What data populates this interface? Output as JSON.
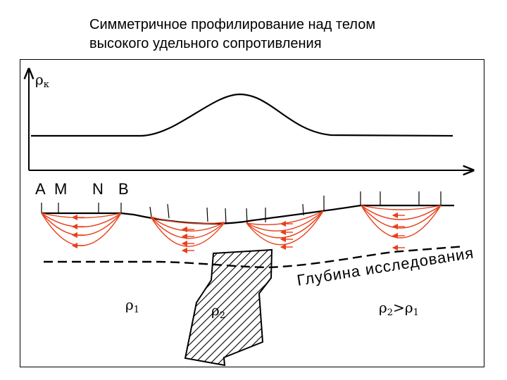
{
  "title": {
    "line1": "Симметричное профилирование над телом",
    "line2": "высокого удельного сопротивления"
  },
  "axis": {
    "y_label": "ρ",
    "y_label_sub": "к"
  },
  "electrodes": {
    "a": "A",
    "m": "M",
    "n": "N",
    "b": "B"
  },
  "depth_label": "Глубина исследования",
  "media": {
    "rho1": "ρ",
    "rho1_sub": "1",
    "rho2": "ρ",
    "rho2_sub": "2",
    "relation_a": "ρ",
    "relation_a_sub": "2",
    "relation_op": ">",
    "relation_b": "ρ",
    "relation_b_sub": "1"
  },
  "colors": {
    "current_lines": "#e8401c",
    "ink": "#000000"
  }
}
